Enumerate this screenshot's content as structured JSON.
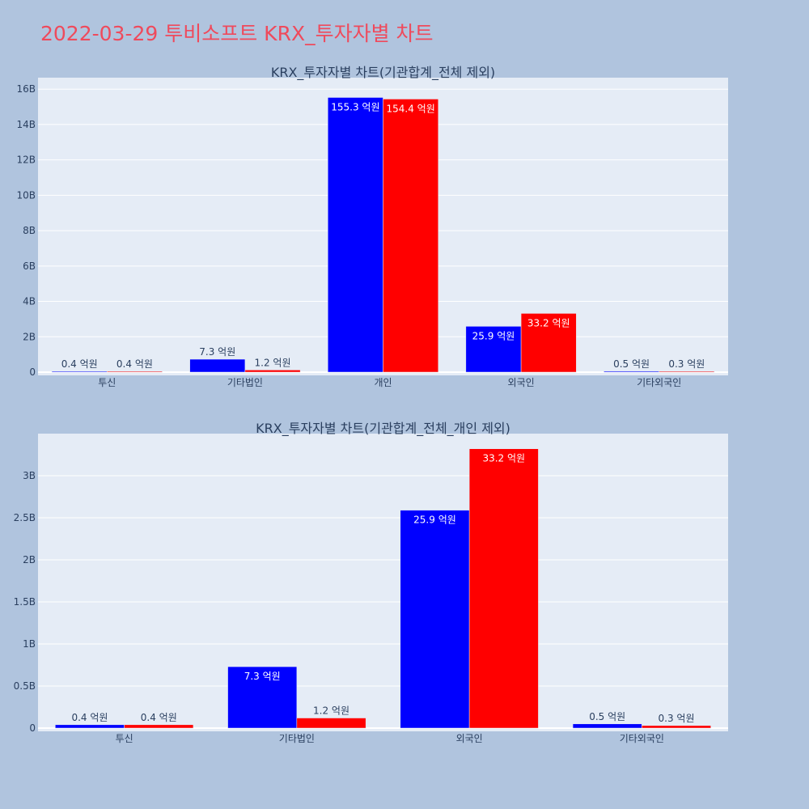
{
  "title": "2022-03-29 투비소프트 KRX_투자자별 차트",
  "chart_data": [
    {
      "type": "bar",
      "title": "KRX_투자자별 차트(기관합계_전체 제외)",
      "categories": [
        "투신",
        "기타법인",
        "개인",
        "외국인",
        "기타외국인"
      ],
      "series": [
        {
          "color": "#0000ff",
          "values": [
            40000000,
            730000000,
            15530000000,
            2590000000,
            50000000
          ],
          "labels": [
            "0.4 억원",
            "7.3 억원",
            "155.3 억원",
            "25.9 억원",
            "0.5 억원"
          ]
        },
        {
          "color": "#ff0000",
          "values": [
            40000000,
            120000000,
            15440000000,
            3320000000,
            30000000
          ],
          "labels": [
            "0.4 억원",
            "1.2 억원",
            "154.4 억원",
            "33.2 억원",
            "0.3 억원"
          ]
        }
      ],
      "yticks": [
        0,
        2000000000,
        4000000000,
        6000000000,
        8000000000,
        10000000000,
        12000000000,
        14000000000,
        16000000000
      ],
      "ytick_labels": [
        "0",
        "2B",
        "4B",
        "6B",
        "8B",
        "10B",
        "12B",
        "14B",
        "16B"
      ],
      "ylim": [
        0,
        16650000000
      ],
      "grid": true
    },
    {
      "type": "bar",
      "title": "KRX_투자자별 차트(기관합계_전체_개인 제외)",
      "categories": [
        "투신",
        "기타법인",
        "외국인",
        "기타외국인"
      ],
      "series": [
        {
          "color": "#0000ff",
          "values": [
            40000000,
            730000000,
            2590000000,
            50000000
          ],
          "labels": [
            "0.4 억원",
            "7.3 억원",
            "25.9 억원",
            "0.5 억원"
          ]
        },
        {
          "color": "#ff0000",
          "values": [
            40000000,
            120000000,
            3320000000,
            30000000
          ],
          "labels": [
            "0.4 억원",
            "1.2 억원",
            "33.2 억원",
            "0.3 억원"
          ]
        }
      ],
      "yticks": [
        0,
        500000000,
        1000000000,
        1500000000,
        2000000000,
        2500000000,
        3000000000
      ],
      "ytick_labels": [
        "0",
        "0.5B",
        "1B",
        "1.5B",
        "2B",
        "2.5B",
        "3B"
      ],
      "ylim": [
        0,
        3500000000
      ],
      "grid": true
    }
  ]
}
